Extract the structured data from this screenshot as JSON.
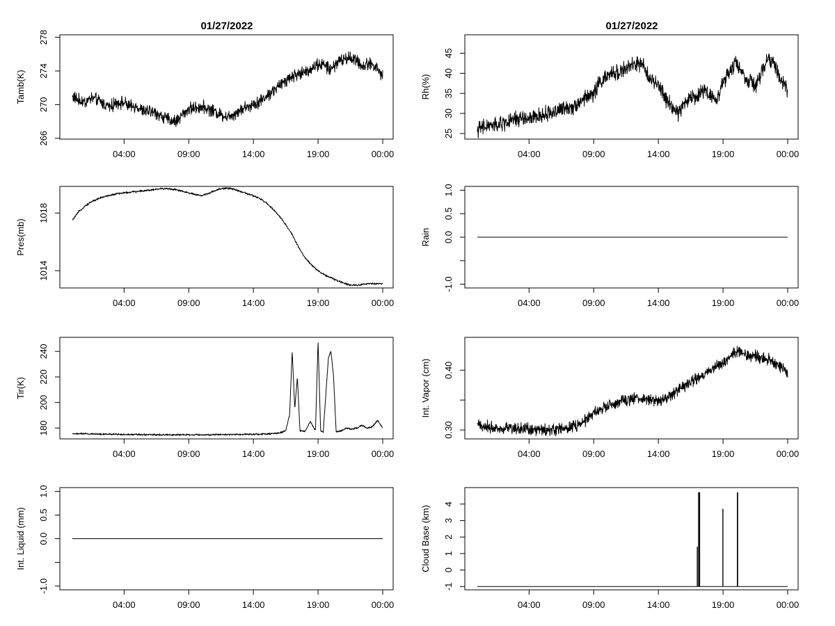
{
  "titles": {
    "left": "01/27/2022",
    "right": "01/27/2022"
  },
  "chart_data": [
    {
      "id": "tamb",
      "type": "line",
      "ylabel": "Tamb(K)",
      "xlim": [
        0,
        24
      ],
      "x_ticks": [
        4,
        9,
        14,
        19,
        24
      ],
      "x_tick_labels": [
        "04:00",
        "09:00",
        "14:00",
        "19:00",
        "00:00"
      ],
      "ylim": [
        265.9,
        278.3
      ],
      "y_ticks": [
        266,
        270,
        274,
        278
      ],
      "y_tick_labels": [
        "266",
        "270",
        "274",
        "278"
      ],
      "y_tick_rotate": true,
      "grid": false,
      "series": [
        {
          "x": [
            0,
            0.5,
            1,
            1.5,
            2,
            2.5,
            3,
            3.5,
            4,
            4.5,
            5,
            5.5,
            6,
            6.5,
            7,
            7.5,
            8,
            8.5,
            9,
            9.5,
            10,
            10.5,
            11,
            11.5,
            12,
            12.5,
            13,
            13.5,
            14,
            14.5,
            15,
            15.5,
            16,
            16.5,
            17,
            17.5,
            18,
            18.5,
            19,
            19.5,
            20,
            20.5,
            21,
            21.5,
            22,
            22.5,
            23,
            23.5,
            24
          ],
          "y": [
            271.0,
            270.5,
            270.3,
            270.8,
            270.5,
            270.0,
            269.8,
            270.3,
            270.2,
            269.7,
            269.8,
            269.2,
            269.2,
            269.0,
            268.5,
            268.2,
            268.0,
            268.8,
            269.5,
            269.6,
            269.8,
            269.5,
            269.2,
            268.8,
            268.6,
            268.9,
            269.4,
            269.7,
            270.1,
            270.4,
            271.0,
            271.6,
            272.2,
            272.9,
            273.4,
            273.6,
            273.9,
            274.3,
            274.8,
            274.7,
            274.1,
            275.1,
            275.4,
            275.6,
            275.2,
            274.5,
            275.0,
            274.4,
            273.4
          ],
          "noise": 0.9
        }
      ]
    },
    {
      "id": "rh",
      "type": "line",
      "ylabel": "Rh(%)",
      "xlim": [
        0,
        24
      ],
      "x_ticks": [
        4,
        9,
        14,
        19,
        24
      ],
      "x_tick_labels": [
        "04:00",
        "09:00",
        "14:00",
        "19:00",
        "00:00"
      ],
      "ylim": [
        23.6,
        49.6
      ],
      "y_ticks": [
        25,
        30,
        35,
        40,
        45
      ],
      "y_tick_labels": [
        "25",
        "30",
        "35",
        "40",
        "45"
      ],
      "y_tick_rotate": true,
      "grid": false,
      "series": [
        {
          "x": [
            0,
            0.5,
            1,
            1.5,
            2,
            2.5,
            3,
            3.5,
            4,
            4.5,
            5,
            5.5,
            6,
            6.5,
            7,
            7.5,
            8,
            8.5,
            9,
            9.5,
            10,
            10.5,
            11,
            11.5,
            12,
            12.5,
            13,
            13.5,
            14,
            14.5,
            15,
            15.5,
            16,
            16.5,
            17,
            17.5,
            18,
            18.5,
            19,
            19.5,
            20,
            20.5,
            21,
            21.5,
            22,
            22.5,
            23,
            23.5,
            24
          ],
          "y": [
            26.0,
            26.5,
            27.0,
            27.0,
            27.5,
            28.0,
            28.5,
            29.0,
            28.5,
            29.0,
            29.5,
            30.0,
            30.5,
            31.0,
            31.5,
            32.0,
            33.0,
            34.0,
            35.0,
            38.0,
            39.0,
            40.0,
            40.5,
            41.0,
            42.0,
            42.5,
            41.0,
            38.0,
            37.0,
            34.0,
            32.0,
            30.0,
            32.5,
            34.0,
            34.0,
            36.0,
            35.0,
            33.0,
            38.0,
            40.0,
            43.0,
            40.0,
            38.0,
            37.0,
            40.0,
            44.0,
            42.0,
            38.0,
            36.0
          ],
          "noise": 2.4
        }
      ]
    },
    {
      "id": "pres",
      "type": "line",
      "ylabel": "Pres(mb)",
      "xlim": [
        0,
        24
      ],
      "x_ticks": [
        4,
        9,
        14,
        19,
        24
      ],
      "x_tick_labels": [
        "04:00",
        "09:00",
        "14:00",
        "19:00",
        "00:00"
      ],
      "ylim": [
        1012.8,
        1019.85
      ],
      "y_ticks": [
        1014,
        1018
      ],
      "y_tick_labels": [
        "1014",
        "1018"
      ],
      "y_tick_rotate": true,
      "grid": false,
      "series": [
        {
          "x": [
            0,
            0.5,
            1,
            1.5,
            2,
            2.5,
            3,
            3.5,
            4,
            4.5,
            5,
            5.5,
            6,
            6.5,
            7,
            7.5,
            8,
            8.5,
            9,
            9.5,
            10,
            10.5,
            11,
            11.5,
            12,
            12.5,
            13,
            13.5,
            14,
            14.5,
            15,
            15.5,
            16,
            16.5,
            17,
            17.5,
            18,
            18.5,
            19,
            19.5,
            20,
            20.5,
            21,
            21.5,
            22,
            22.5,
            23,
            23.5,
            24
          ],
          "y": [
            1017.5,
            1018.1,
            1018.5,
            1018.8,
            1019.0,
            1019.15,
            1019.25,
            1019.35,
            1019.4,
            1019.45,
            1019.5,
            1019.55,
            1019.6,
            1019.65,
            1019.7,
            1019.68,
            1019.62,
            1019.5,
            1019.4,
            1019.3,
            1019.2,
            1019.35,
            1019.55,
            1019.7,
            1019.72,
            1019.65,
            1019.5,
            1019.35,
            1019.2,
            1019.0,
            1018.7,
            1018.3,
            1017.8,
            1017.2,
            1016.5,
            1015.6,
            1014.9,
            1014.4,
            1014.0,
            1013.7,
            1013.5,
            1013.3,
            1013.15,
            1013.0,
            1013.0,
            1013.05,
            1013.1,
            1013.1,
            1013.1
          ],
          "noise": 0.08
        }
      ]
    },
    {
      "id": "rain",
      "type": "line",
      "ylabel": "Rain",
      "xlim": [
        0,
        24
      ],
      "x_ticks": [
        4,
        9,
        14,
        19,
        24
      ],
      "x_tick_labels": [
        "04:00",
        "09:00",
        "14:00",
        "19:00",
        "00:00"
      ],
      "ylim": [
        -1.08,
        1.08
      ],
      "y_ticks": [
        -1.0,
        -0.5,
        0.0,
        0.5,
        1.0
      ],
      "y_tick_labels": [
        "-1.0",
        "",
        "0.0",
        "0.5",
        "1.0"
      ],
      "y_tick_rotate": true,
      "grid": false,
      "series": [
        {
          "x": [
            0,
            24
          ],
          "y": [
            0,
            0
          ],
          "noise": 0
        }
      ]
    },
    {
      "id": "tir",
      "type": "line",
      "ylabel": "Tir(K)",
      "xlim": [
        0,
        24
      ],
      "x_ticks": [
        4,
        9,
        14,
        19,
        24
      ],
      "x_tick_labels": [
        "04:00",
        "09:00",
        "14:00",
        "19:00",
        "00:00"
      ],
      "ylim": [
        171.5,
        251.0
      ],
      "y_ticks": [
        180,
        200,
        220,
        240
      ],
      "y_tick_labels": [
        "180",
        "200",
        "220",
        "240"
      ],
      "y_tick_rotate": true,
      "grid": false,
      "series": [
        {
          "x": [
            0,
            1,
            2,
            3,
            4,
            5,
            6,
            7,
            8,
            9,
            10,
            11,
            12,
            13,
            14,
            15,
            16,
            16.5,
            16.8,
            17.0,
            17.2,
            17.4,
            17.6,
            18.0,
            18.4,
            18.8,
            19.0,
            19.2,
            19.4,
            19.8,
            20.0,
            20.2,
            20.4,
            20.8,
            21.2,
            21.6,
            22.0,
            22.4,
            22.8,
            23.2,
            23.6,
            24
          ],
          "y": [
            175.5,
            175.5,
            175.3,
            175.2,
            175.0,
            175.0,
            174.8,
            174.8,
            174.7,
            174.7,
            174.7,
            174.8,
            174.9,
            175.0,
            175.2,
            175.3,
            176.0,
            178.0,
            190.0,
            240.0,
            195.0,
            220.0,
            178.0,
            177.5,
            185.0,
            178.0,
            248.0,
            178.0,
            177.0,
            235.0,
            240.0,
            220.0,
            177.0,
            178.0,
            180.0,
            179.0,
            180.0,
            182.0,
            180.0,
            181.0,
            186.0,
            180.0
          ],
          "noise": 0.8
        }
      ]
    },
    {
      "id": "vapor",
      "type": "line",
      "ylabel": "Int. Vapor (cm)",
      "xlim": [
        0,
        24
      ],
      "x_ticks": [
        4,
        9,
        14,
        19,
        24
      ],
      "x_tick_labels": [
        "04:00",
        "09:00",
        "14:00",
        "19:00",
        "00:00"
      ],
      "ylim": [
        0.285,
        0.455
      ],
      "y_ticks": [
        0.3,
        0.35,
        0.4
      ],
      "y_tick_labels": [
        "0.30",
        "",
        "0.40"
      ],
      "y_tick_rotate": true,
      "grid": false,
      "series": [
        {
          "x": [
            0,
            0.5,
            1,
            1.5,
            2,
            2.5,
            3,
            3.5,
            4,
            4.5,
            5,
            5.5,
            6,
            6.5,
            7,
            7.5,
            8,
            8.5,
            9,
            9.5,
            10,
            10.5,
            11,
            11.5,
            12,
            12.5,
            13,
            13.5,
            14,
            14.5,
            15,
            15.5,
            16,
            16.5,
            17,
            17.5,
            18,
            18.5,
            19,
            19.5,
            20,
            20.5,
            21,
            21.5,
            22,
            22.5,
            23,
            23.5,
            24
          ],
          "y": [
            0.31,
            0.306,
            0.305,
            0.304,
            0.303,
            0.304,
            0.302,
            0.303,
            0.302,
            0.301,
            0.3,
            0.3,
            0.301,
            0.302,
            0.304,
            0.306,
            0.31,
            0.318,
            0.328,
            0.334,
            0.338,
            0.342,
            0.346,
            0.349,
            0.352,
            0.353,
            0.352,
            0.35,
            0.349,
            0.352,
            0.358,
            0.367,
            0.374,
            0.38,
            0.386,
            0.393,
            0.4,
            0.405,
            0.412,
            0.423,
            0.432,
            0.428,
            0.425,
            0.423,
            0.421,
            0.418,
            0.412,
            0.404,
            0.395
          ],
          "noise": 0.012
        }
      ]
    },
    {
      "id": "liquid",
      "type": "line",
      "ylabel": "Int. Liquid (mm)",
      "xlim": [
        0,
        24
      ],
      "x_ticks": [
        4,
        9,
        14,
        19,
        24
      ],
      "x_tick_labels": [
        "04:00",
        "09:00",
        "14:00",
        "19:00",
        "00:00"
      ],
      "ylim": [
        -1.08,
        1.08
      ],
      "y_ticks": [
        -1.0,
        -0.5,
        0.0,
        0.5,
        1.0
      ],
      "y_tick_labels": [
        "-1.0",
        "",
        "0.0",
        "0.5",
        "1.0"
      ],
      "y_tick_rotate": true,
      "grid": false,
      "series": [
        {
          "x": [
            0,
            24
          ],
          "y": [
            0,
            0
          ],
          "noise": 0
        }
      ]
    },
    {
      "id": "cloud",
      "type": "line",
      "ylabel": "Cloud Base (km)",
      "xlim": [
        0,
        24
      ],
      "x_ticks": [
        4,
        9,
        14,
        19,
        24
      ],
      "x_tick_labels": [
        "04:00",
        "09:00",
        "14:00",
        "19:00",
        "00:00"
      ],
      "ylim": [
        -1.2,
        5.0
      ],
      "y_ticks": [
        -1,
        0,
        1,
        2,
        3,
        4
      ],
      "y_tick_labels": [
        "-1",
        "0",
        "1",
        "2",
        "3",
        "4"
      ],
      "y_tick_rotate": true,
      "grid": false,
      "series": [
        {
          "x": [
            0,
            17.0,
            17.0,
            17.02,
            17.02,
            17.1,
            17.1,
            17.12,
            17.12,
            17.18,
            17.18,
            17.2,
            17.2,
            18.98,
            18.98,
            19.0,
            19.0,
            20.1,
            20.1,
            20.14,
            20.14,
            24
          ],
          "y": [
            -1,
            -1,
            1.4,
            1.4,
            -1,
            -1,
            4.7,
            4.7,
            -1,
            -1,
            4.7,
            4.7,
            -1,
            -1,
            3.7,
            3.7,
            -1,
            -1,
            4.7,
            4.7,
            -1,
            -1
          ],
          "noise": 0
        }
      ]
    }
  ]
}
